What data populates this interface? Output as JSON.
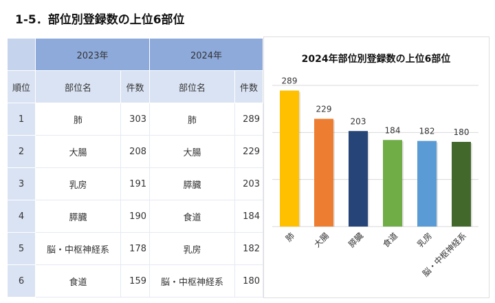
{
  "title": "1-5．部位別登録数の上位6部位",
  "table": {
    "year1": "2023年",
    "year2": "2024年",
    "rank_header": "順位",
    "site_header": "部位名",
    "count_header": "件数",
    "rows": [
      {
        "rank": "1",
        "site2023": "肺",
        "count2023": "303",
        "site2024": "肺",
        "count2024": "289"
      },
      {
        "rank": "2",
        "site2023": "大腸",
        "count2023": "208",
        "site2024": "大腸",
        "count2024": "229"
      },
      {
        "rank": "3",
        "site2023": "乳房",
        "count2023": "191",
        "site2024": "膵臓",
        "count2024": "203"
      },
      {
        "rank": "4",
        "site2023": "膵臓",
        "count2023": "190",
        "site2024": "食道",
        "count2024": "184"
      },
      {
        "rank": "5",
        "site2023": "脳・中枢神経系",
        "count2023": "178",
        "site2024": "乳房",
        "count2024": "182"
      },
      {
        "rank": "6",
        "site2023": "食道",
        "count2023": "159",
        "site2024": "脳・中枢神経系",
        "count2024": "180"
      }
    ]
  },
  "chart_data": {
    "type": "bar",
    "title": "2024年部位別登録数の上位6部位",
    "categories": [
      "肺",
      "大腸",
      "膵臓",
      "食道",
      "乳房",
      "脳・中枢神経系"
    ],
    "values": [
      289,
      229,
      203,
      184,
      182,
      180
    ],
    "colors": [
      "#ffc000",
      "#ed7d31",
      "#264478",
      "#70ad47",
      "#5b9bd5",
      "#43682b"
    ],
    "ylim": [
      0,
      300
    ],
    "gridlines": [
      100,
      200,
      300
    ],
    "grid": true,
    "xlabel": "",
    "ylabel": ""
  }
}
